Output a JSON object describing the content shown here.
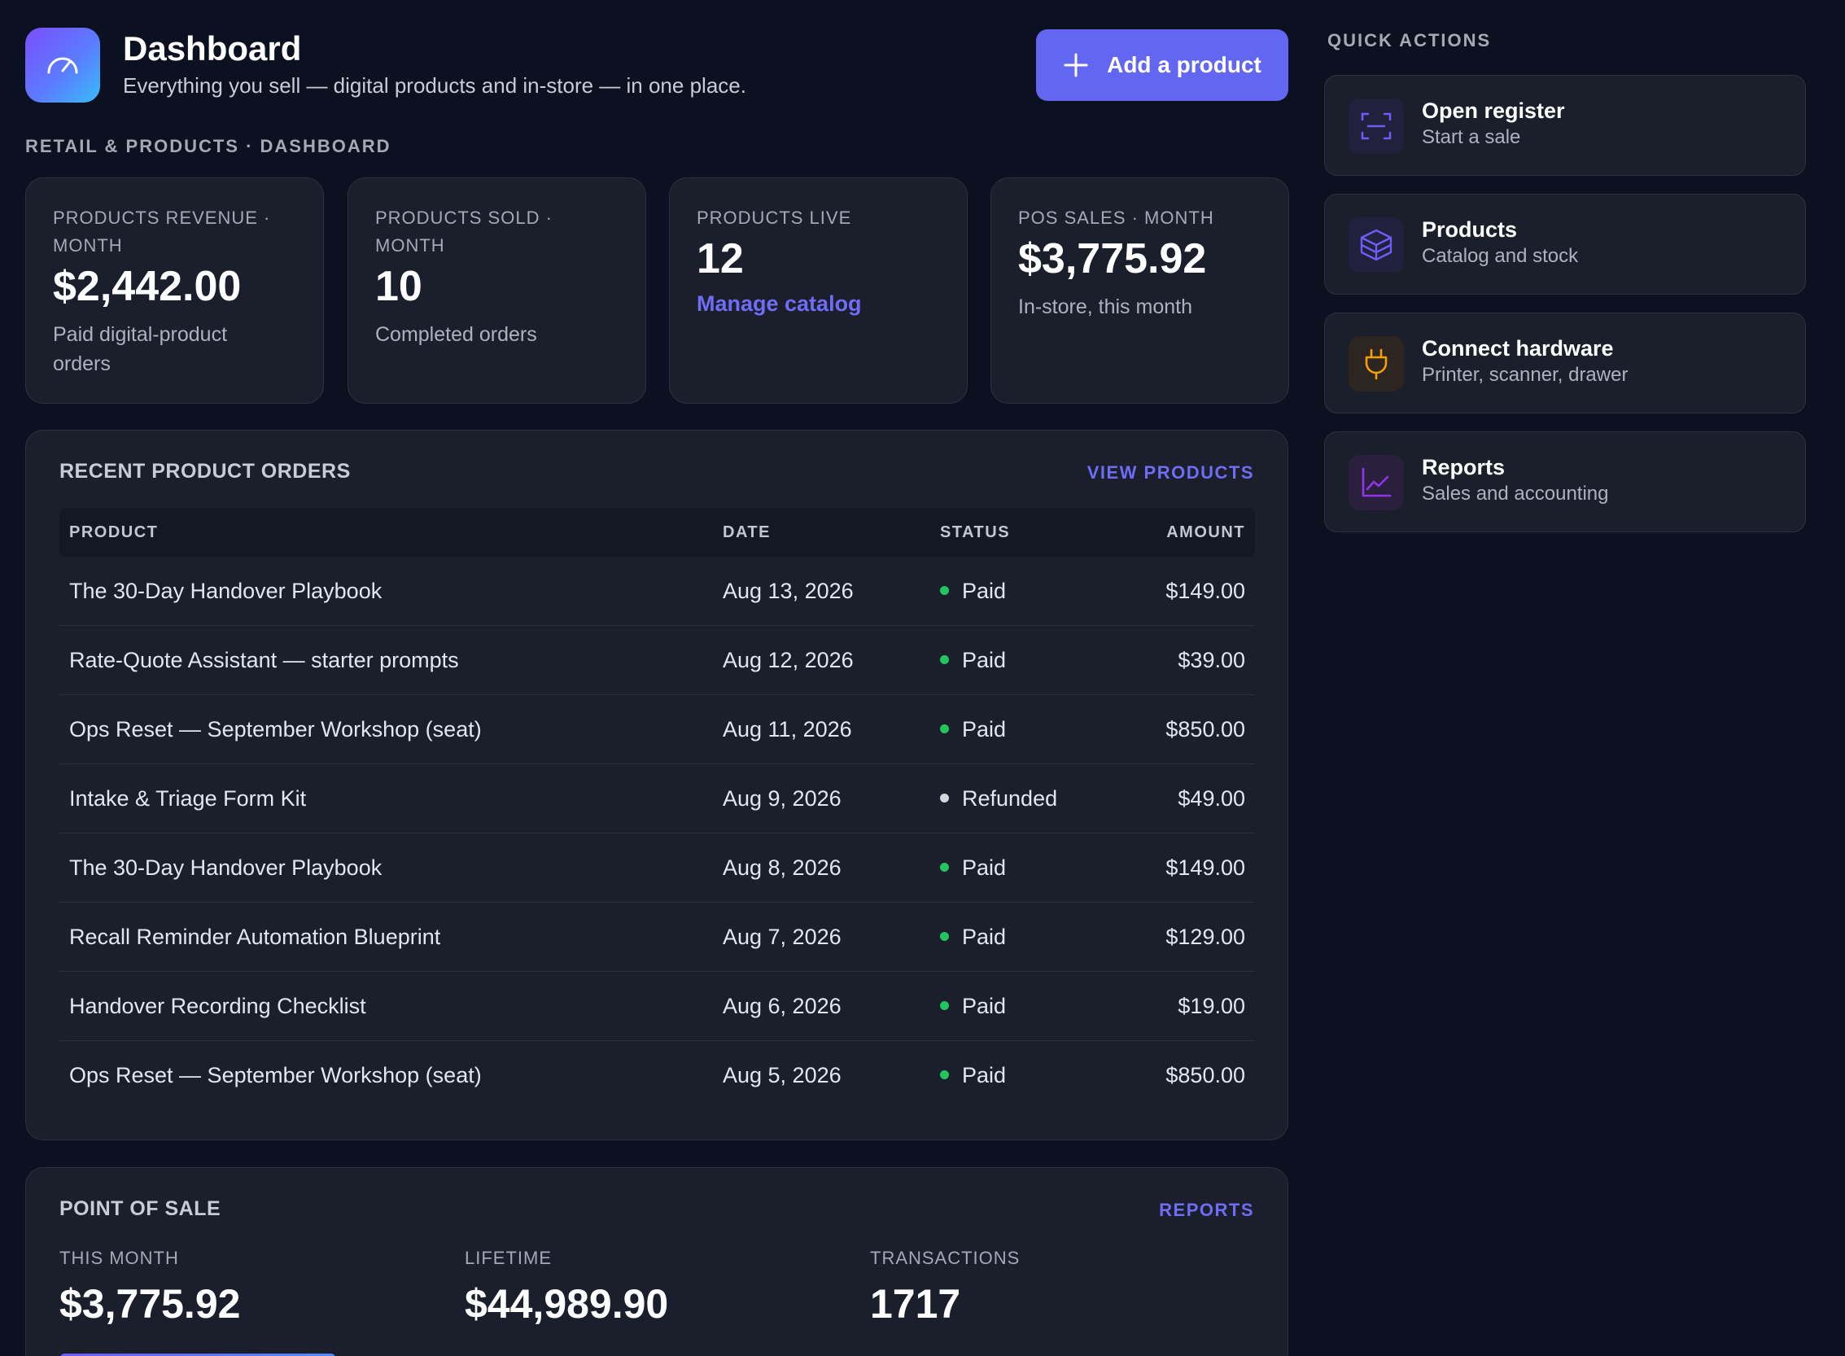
{
  "header": {
    "title": "Dashboard",
    "subtitle": "Everything you sell — digital products and in-store — in one place.",
    "add_button_label": "Add a product"
  },
  "breadcrumb": "RETAIL & PRODUCTS · DASHBOARD",
  "stats": [
    {
      "label": "PRODUCTS REVENUE · MONTH",
      "value": "$2,442.00",
      "description": "Paid digital-product orders"
    },
    {
      "label": "PRODUCTS SOLD · MONTH",
      "value": "10",
      "description": "Completed orders"
    },
    {
      "label": "PRODUCTS LIVE",
      "value": "12",
      "link": "Manage catalog"
    },
    {
      "label": "POS SALES · MONTH",
      "value": "$3,775.92",
      "description": "In-store, this month"
    }
  ],
  "orders": {
    "title": "RECENT PRODUCT ORDERS",
    "link": "VIEW PRODUCTS",
    "columns": {
      "product": "PRODUCT",
      "date": "DATE",
      "status": "STATUS",
      "amount": "AMOUNT"
    },
    "rows": [
      {
        "product": "The 30-Day Handover Playbook",
        "date": "Aug 13, 2026",
        "status": "Paid",
        "amount": "$149.00"
      },
      {
        "product": "Rate-Quote Assistant — starter prompts",
        "date": "Aug 12, 2026",
        "status": "Paid",
        "amount": "$39.00"
      },
      {
        "product": "Ops Reset — September Workshop (seat)",
        "date": "Aug 11, 2026",
        "status": "Paid",
        "amount": "$850.00"
      },
      {
        "product": "Intake & Triage Form Kit",
        "date": "Aug 9, 2026",
        "status": "Refunded",
        "amount": "$49.00"
      },
      {
        "product": "The 30-Day Handover Playbook",
        "date": "Aug 8, 2026",
        "status": "Paid",
        "amount": "$149.00"
      },
      {
        "product": "Recall Reminder Automation Blueprint",
        "date": "Aug 7, 2026",
        "status": "Paid",
        "amount": "$129.00"
      },
      {
        "product": "Handover Recording Checklist",
        "date": "Aug 6, 2026",
        "status": "Paid",
        "amount": "$19.00"
      },
      {
        "product": "Ops Reset — September Workshop (seat)",
        "date": "Aug 5, 2026",
        "status": "Paid",
        "amount": "$850.00"
      }
    ]
  },
  "status_colors": {
    "Paid": "#22c55e",
    "Refunded": "#d4d6de"
  },
  "pos": {
    "title": "POINT OF SALE",
    "link": "REPORTS",
    "this_month_label": "THIS MONTH",
    "this_month_value": "$3,775.92",
    "lifetime_label": "LIFETIME",
    "lifetime_value": "$44,989.90",
    "transactions_label": "TRANSACTIONS",
    "transactions_value": "1717"
  },
  "quick_actions": {
    "title": "QUICK ACTIONS",
    "items": [
      {
        "label": "Open register",
        "sub": "Start a sale",
        "icon": "scan-icon",
        "color": "#6d5cf6"
      },
      {
        "label": "Products",
        "sub": "Catalog and stock",
        "icon": "box-icon",
        "color": "#6d5cf6"
      },
      {
        "label": "Connect hardware",
        "sub": "Printer, scanner, drawer",
        "icon": "plug-icon",
        "color": "#f59e0b"
      },
      {
        "label": "Reports",
        "sub": "Sales and accounting",
        "icon": "chart-line-icon",
        "color": "#9333ea"
      }
    ]
  },
  "colors": {
    "background": "#0b1120",
    "card": "#1b1f2c",
    "accent": "#6366f1",
    "link": "#6f6cf6"
  }
}
